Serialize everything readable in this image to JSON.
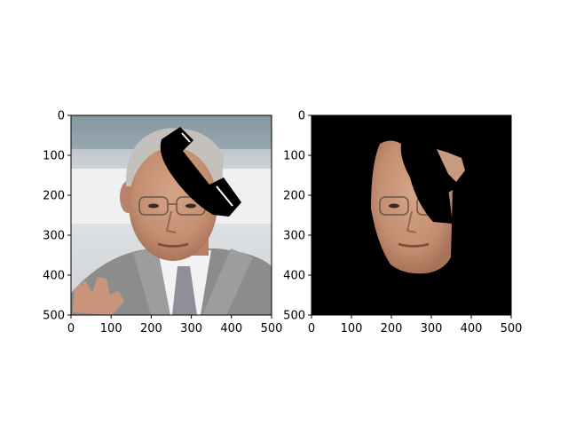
{
  "chart_data": [
    {
      "type": "image",
      "title": "",
      "content": "face photograph with black phone-receiver shaped occlusion over the forehead",
      "xlim": [
        0,
        500
      ],
      "ylim": [
        500,
        0
      ],
      "xticks": [
        0,
        100,
        200,
        300,
        400,
        500
      ],
      "yticks": [
        0,
        100,
        200,
        300,
        400,
        500
      ],
      "xtick_labels": [
        "0",
        "100",
        "200",
        "300",
        "400",
        "500"
      ],
      "ytick_labels": [
        "0",
        "100",
        "200",
        "300",
        "400",
        "500"
      ],
      "grid": false
    },
    {
      "type": "image",
      "title": "",
      "content": "segmented face region (skin only) on black background, occluded area removed",
      "xlim": [
        0,
        500
      ],
      "ylim": [
        500,
        0
      ],
      "xticks": [
        0,
        100,
        200,
        300,
        400,
        500
      ],
      "yticks": [
        0,
        100,
        200,
        300,
        400,
        500
      ],
      "xtick_labels": [
        "0",
        "100",
        "200",
        "300",
        "400",
        "500"
      ],
      "ytick_labels": [
        "0",
        "100",
        "200",
        "300",
        "400",
        "500"
      ],
      "grid": false
    }
  ],
  "colors": {
    "axes": "#000000",
    "mask_background": "#000000",
    "skin": "#c99478",
    "hair": "#bdbab6",
    "suit": "#8a8a8a",
    "backdrop": "#b3b8bc"
  }
}
